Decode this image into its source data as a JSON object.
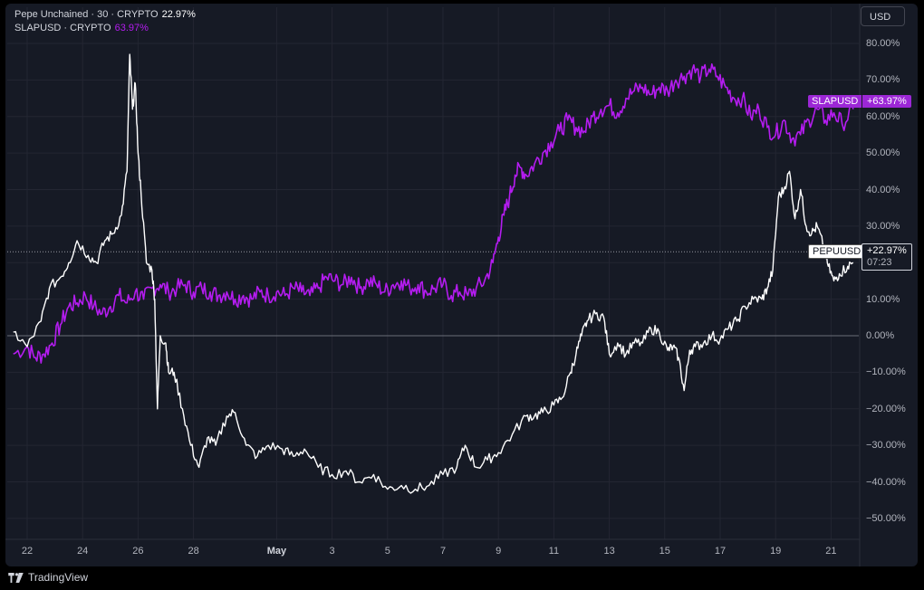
{
  "legend": {
    "series1_name": "Pepe Unchained · 30 · CRYPTO",
    "series1_value": "22.97%",
    "series2_name": "SLAPUSD · CRYPTO",
    "series2_value": "63.97%"
  },
  "currency_button": "USD",
  "price_tags": {
    "slap_name": "SLAPUSD",
    "slap_value": "+63.97%",
    "pepu_name": "PEPUUSD",
    "pepu_value": "+22.97%",
    "pepu_countdown": "07:23"
  },
  "footer": {
    "brand": "TradingView"
  },
  "colors": {
    "background": "#161a25",
    "pepu": "#ffffff",
    "slap": "#b41cf0",
    "grid": "#232632"
  },
  "chart_data": {
    "type": "line",
    "ylabel_unit": "%",
    "ylim": [
      -50,
      80
    ],
    "y_ticks": [
      "80.00%",
      "70.00%",
      "60.00%",
      "50.00%",
      "40.00%",
      "30.00%",
      "20.00%",
      "10.00%",
      "0.00%",
      "−10.00%",
      "−20.00%",
      "−30.00%",
      "−40.00%",
      "−50.00%"
    ],
    "x_ticks": [
      {
        "label": "22",
        "x": 22,
        "month": false
      },
      {
        "label": "24",
        "x": 24,
        "month": false
      },
      {
        "label": "26",
        "x": 26,
        "month": false
      },
      {
        "label": "28",
        "x": 28,
        "month": false
      },
      {
        "label": "May",
        "x": 31,
        "month": true
      },
      {
        "label": "3",
        "x": 33,
        "month": false
      },
      {
        "label": "5",
        "x": 35,
        "month": false
      },
      {
        "label": "7",
        "x": 37,
        "month": false
      },
      {
        "label": "9",
        "x": 39,
        "month": false
      },
      {
        "label": "11",
        "x": 41,
        "month": false
      },
      {
        "label": "13",
        "x": 43,
        "month": false
      },
      {
        "label": "15",
        "x": 45,
        "month": false
      },
      {
        "label": "17",
        "x": 47,
        "month": false
      },
      {
        "label": "19",
        "x": 49,
        "month": false
      },
      {
        "label": "21",
        "x": 51,
        "month": false
      }
    ],
    "x_range": [
      21.5,
      52.3
    ],
    "series": [
      {
        "name": "Pepe Unchained",
        "color": "#ffffff",
        "points": [
          [
            21.5,
            1
          ],
          [
            22.0,
            -3
          ],
          [
            22.5,
            4
          ],
          [
            22.8,
            13
          ],
          [
            23.2,
            16
          ],
          [
            23.5,
            20
          ],
          [
            23.8,
            26
          ],
          [
            24.2,
            22
          ],
          [
            24.5,
            20
          ],
          [
            24.8,
            26
          ],
          [
            25.1,
            28
          ],
          [
            25.4,
            33
          ],
          [
            25.6,
            45
          ],
          [
            25.7,
            77
          ],
          [
            25.8,
            62
          ],
          [
            25.9,
            69
          ],
          [
            26.0,
            50
          ],
          [
            26.1,
            40
          ],
          [
            26.3,
            20
          ],
          [
            26.5,
            18
          ],
          [
            26.6,
            10
          ],
          [
            26.7,
            -20
          ],
          [
            26.8,
            0
          ],
          [
            27.0,
            -2
          ],
          [
            27.1,
            -10
          ],
          [
            27.3,
            -10
          ],
          [
            27.6,
            -20
          ],
          [
            27.9,
            -30
          ],
          [
            28.2,
            -36
          ],
          [
            28.5,
            -28
          ],
          [
            28.8,
            -30
          ],
          [
            29.2,
            -22
          ],
          [
            29.5,
            -21
          ],
          [
            29.9,
            -30
          ],
          [
            30.3,
            -33
          ],
          [
            30.7,
            -30
          ],
          [
            31.2,
            -31
          ],
          [
            31.6,
            -33
          ],
          [
            32.0,
            -31
          ],
          [
            32.5,
            -36
          ],
          [
            33.0,
            -38
          ],
          [
            33.5,
            -37
          ],
          [
            34.0,
            -40
          ],
          [
            34.5,
            -38
          ],
          [
            35.0,
            -42
          ],
          [
            35.5,
            -41
          ],
          [
            36.0,
            -42
          ],
          [
            36.5,
            -41
          ],
          [
            37.0,
            -38
          ],
          [
            37.5,
            -36
          ],
          [
            37.8,
            -30
          ],
          [
            38.2,
            -36
          ],
          [
            38.6,
            -34
          ],
          [
            39.0,
            -32
          ],
          [
            39.5,
            -27
          ],
          [
            40.0,
            -22
          ],
          [
            40.3,
            -22
          ],
          [
            40.6,
            -21
          ],
          [
            41.0,
            -19
          ],
          [
            41.3,
            -17
          ],
          [
            41.6,
            -10
          ],
          [
            41.8,
            -5
          ],
          [
            42.0,
            0
          ],
          [
            42.2,
            4
          ],
          [
            42.5,
            6
          ],
          [
            42.8,
            5
          ],
          [
            43.0,
            -5
          ],
          [
            43.3,
            -2
          ],
          [
            43.6,
            -5
          ],
          [
            43.9,
            -2
          ],
          [
            44.2,
            -2
          ],
          [
            44.5,
            2
          ],
          [
            44.8,
            1
          ],
          [
            45.1,
            -4
          ],
          [
            45.3,
            -3
          ],
          [
            45.5,
            -6
          ],
          [
            45.7,
            -15
          ],
          [
            45.9,
            -4
          ],
          [
            46.1,
            -3
          ],
          [
            46.4,
            -2
          ],
          [
            46.7,
            0
          ],
          [
            47.0,
            -1
          ],
          [
            47.3,
            2
          ],
          [
            47.6,
            4
          ],
          [
            47.9,
            8
          ],
          [
            48.2,
            10
          ],
          [
            48.5,
            10
          ],
          [
            48.7,
            13
          ],
          [
            48.9,
            18
          ],
          [
            49.1,
            38
          ],
          [
            49.3,
            40
          ],
          [
            49.5,
            45
          ],
          [
            49.7,
            32
          ],
          [
            49.9,
            40
          ],
          [
            50.1,
            30
          ],
          [
            50.3,
            28
          ],
          [
            50.5,
            30
          ],
          [
            50.7,
            25
          ],
          [
            50.9,
            19
          ],
          [
            51.1,
            15
          ],
          [
            51.3,
            17
          ],
          [
            51.6,
            19
          ],
          [
            51.8,
            20
          ]
        ]
      },
      {
        "name": "SLAPUSD",
        "color": "#b41cf0",
        "points": [
          [
            21.5,
            -5
          ],
          [
            22.0,
            -3
          ],
          [
            22.3,
            -6
          ],
          [
            22.6,
            -5
          ],
          [
            22.9,
            -2
          ],
          [
            23.2,
            3
          ],
          [
            23.5,
            8
          ],
          [
            23.8,
            9
          ],
          [
            24.1,
            11
          ],
          [
            24.4,
            8
          ],
          [
            24.7,
            6
          ],
          [
            25.0,
            8
          ],
          [
            25.3,
            11
          ],
          [
            25.6,
            9
          ],
          [
            25.9,
            12
          ],
          [
            26.2,
            10
          ],
          [
            26.5,
            13
          ],
          [
            26.8,
            14
          ],
          [
            27.1,
            12
          ],
          [
            27.4,
            13
          ],
          [
            27.7,
            14
          ],
          [
            28.0,
            12
          ],
          [
            28.3,
            13
          ],
          [
            28.6,
            12
          ],
          [
            28.9,
            11
          ],
          [
            29.2,
            12
          ],
          [
            29.5,
            10
          ],
          [
            29.8,
            11
          ],
          [
            30.1,
            10
          ],
          [
            30.4,
            12
          ],
          [
            30.7,
            11
          ],
          [
            31.0,
            12
          ],
          [
            31.3,
            11
          ],
          [
            31.6,
            13
          ],
          [
            31.9,
            12
          ],
          [
            32.2,
            11
          ],
          [
            32.5,
            13
          ],
          [
            32.8,
            16
          ],
          [
            33.1,
            15
          ],
          [
            33.4,
            14
          ],
          [
            33.7,
            16
          ],
          [
            34.0,
            13
          ],
          [
            34.3,
            15
          ],
          [
            34.6,
            14
          ],
          [
            34.9,
            12
          ],
          [
            35.2,
            14
          ],
          [
            35.5,
            15
          ],
          [
            35.8,
            13
          ],
          [
            36.1,
            14
          ],
          [
            36.4,
            12
          ],
          [
            36.7,
            13
          ],
          [
            37.0,
            14
          ],
          [
            37.3,
            11
          ],
          [
            37.6,
            12
          ],
          [
            37.9,
            11
          ],
          [
            38.2,
            13
          ],
          [
            38.5,
            15
          ],
          [
            38.8,
            20
          ],
          [
            39.0,
            27
          ],
          [
            39.2,
            33
          ],
          [
            39.4,
            38
          ],
          [
            39.6,
            44
          ],
          [
            39.8,
            46
          ],
          [
            40.0,
            44
          ],
          [
            40.3,
            47
          ],
          [
            40.6,
            50
          ],
          [
            40.9,
            53
          ],
          [
            41.2,
            56
          ],
          [
            41.5,
            59
          ],
          [
            41.8,
            57
          ],
          [
            42.1,
            56
          ],
          [
            42.4,
            60
          ],
          [
            42.7,
            62
          ],
          [
            43.0,
            63
          ],
          [
            43.3,
            61
          ],
          [
            43.6,
            65
          ],
          [
            43.9,
            67
          ],
          [
            44.2,
            68
          ],
          [
            44.5,
            66
          ],
          [
            44.8,
            68
          ],
          [
            45.1,
            67
          ],
          [
            45.4,
            70
          ],
          [
            45.7,
            71
          ],
          [
            46.0,
            73
          ],
          [
            46.3,
            71
          ],
          [
            46.6,
            73
          ],
          [
            46.9,
            71
          ],
          [
            47.2,
            68
          ],
          [
            47.5,
            65
          ],
          [
            47.8,
            65
          ],
          [
            48.1,
            60
          ],
          [
            48.4,
            62
          ],
          [
            48.7,
            57
          ],
          [
            49.0,
            55
          ],
          [
            49.3,
            59
          ],
          [
            49.6,
            54
          ],
          [
            49.9,
            55
          ],
          [
            50.2,
            59
          ],
          [
            50.5,
            62
          ],
          [
            50.8,
            59
          ],
          [
            51.1,
            61
          ],
          [
            51.4,
            58
          ],
          [
            51.8,
            62
          ]
        ]
      }
    ]
  }
}
